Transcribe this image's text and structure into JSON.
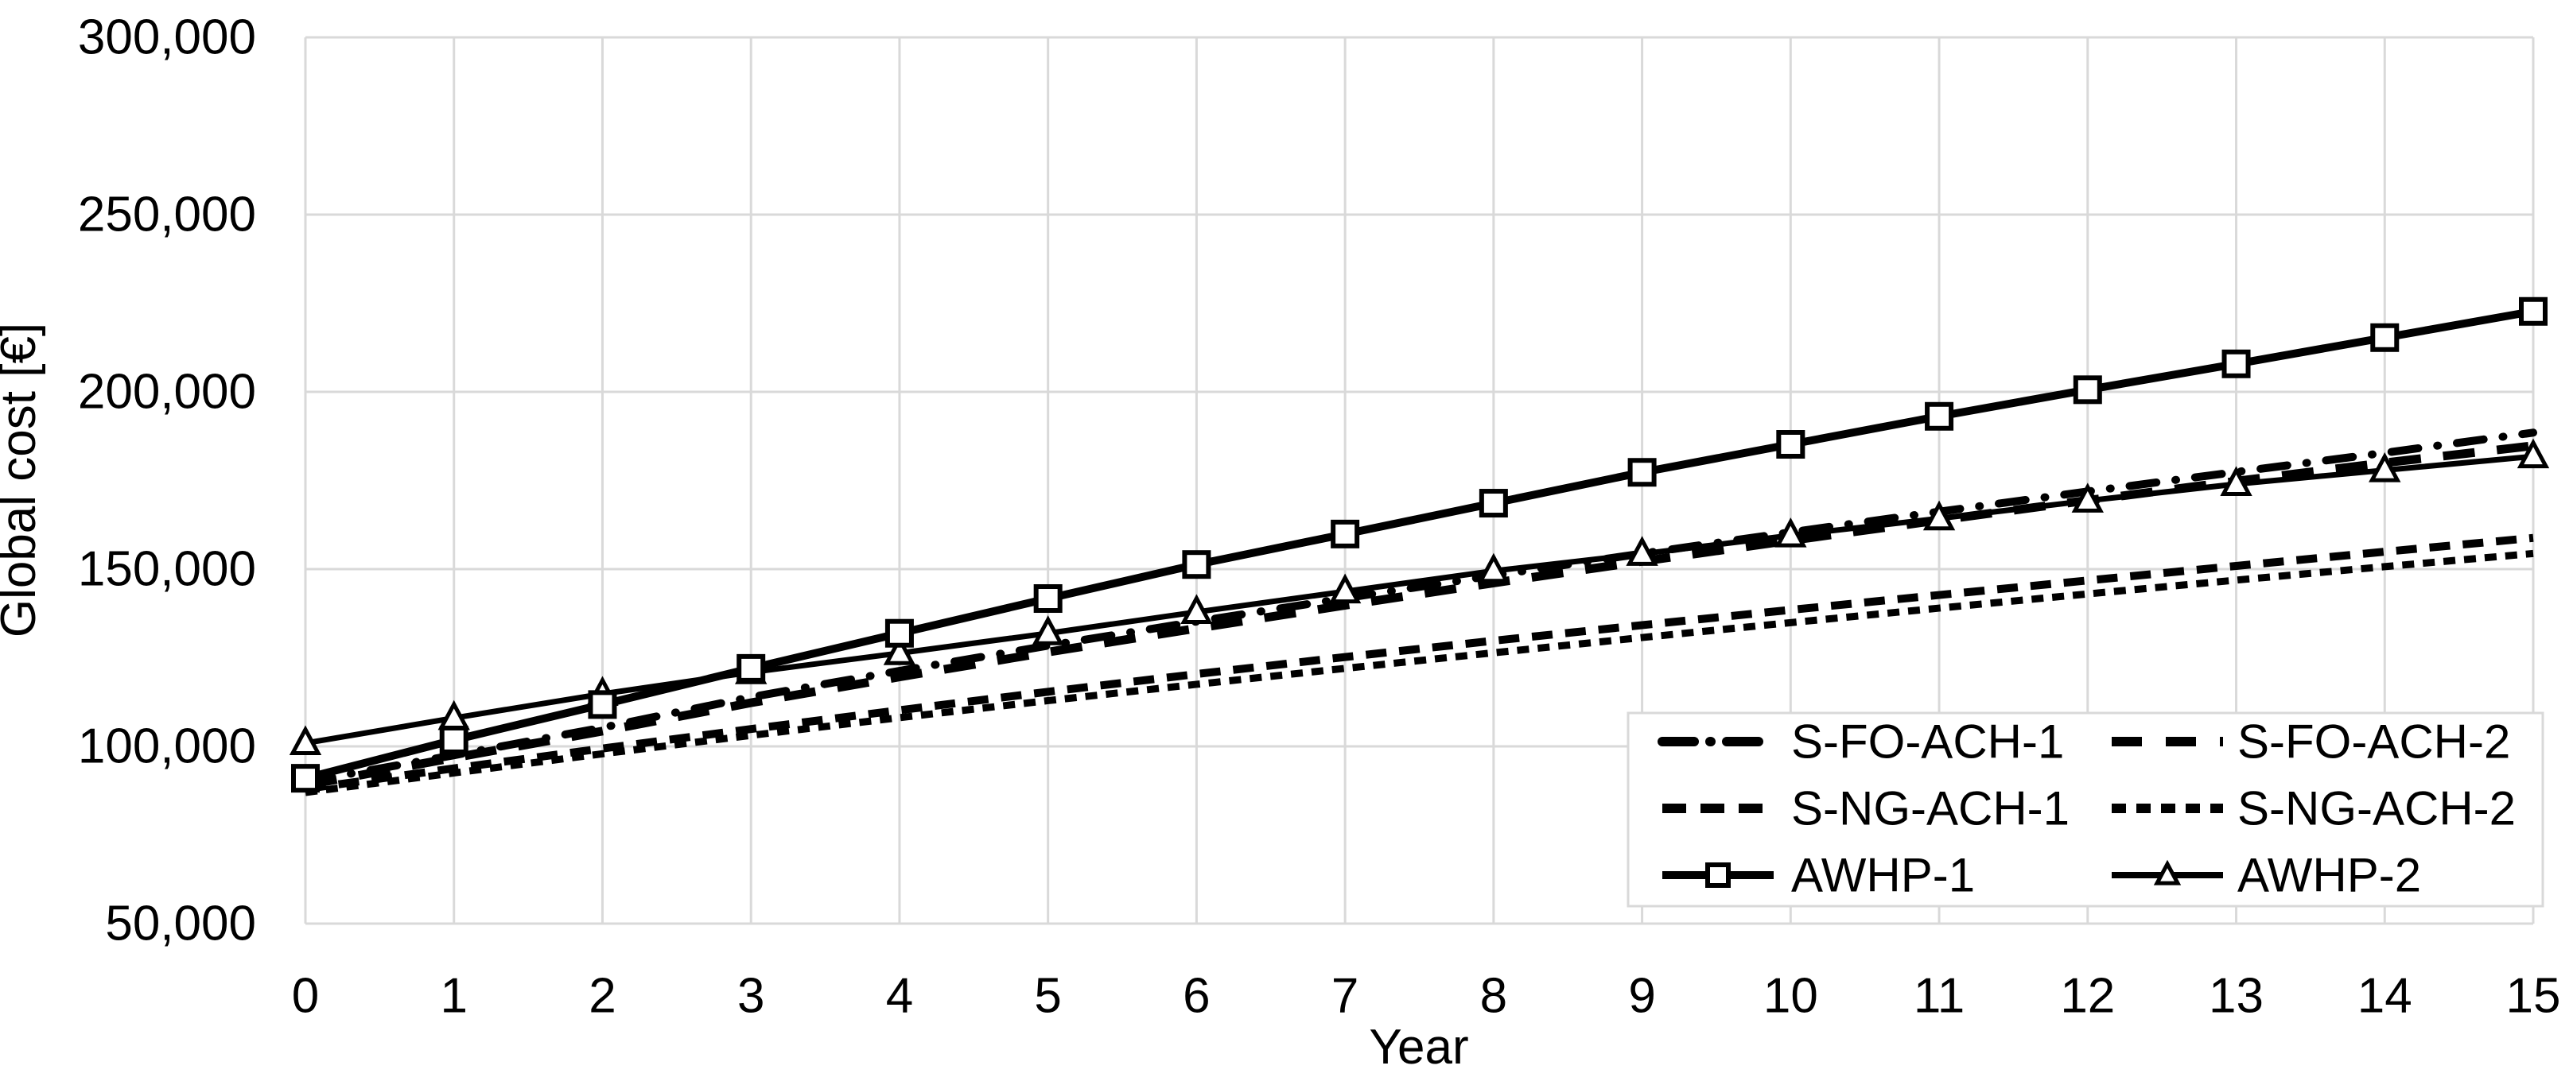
{
  "chart_data": {
    "type": "line",
    "title": "",
    "xlabel": "Year",
    "ylabel": "Global cost [€]",
    "xlim": [
      0,
      15
    ],
    "ylim": [
      50000,
      300000
    ],
    "grid": true,
    "legend_position": "inside-bottom-right",
    "x": [
      0,
      1,
      2,
      3,
      4,
      5,
      6,
      7,
      8,
      9,
      10,
      11,
      12,
      13,
      14,
      15
    ],
    "x_tick_labels": [
      "0",
      "1",
      "2",
      "3",
      "4",
      "5",
      "6",
      "7",
      "8",
      "9",
      "10",
      "11",
      "12",
      "13",
      "14",
      "15"
    ],
    "y_ticks": [
      {
        "value": 300000,
        "label": "300,000"
      },
      {
        "value": 250000,
        "label": "250,000"
      },
      {
        "value": 200000,
        "label": "200,000"
      },
      {
        "value": 150000,
        "label": "150,000"
      },
      {
        "value": 100000,
        "label": "100,000"
      },
      {
        "value": 50000,
        "label": "50,000"
      }
    ],
    "series": [
      {
        "name": "S-FO-ACH-1",
        "style": "dashdot",
        "marker": "none",
        "values": [
          90000,
          97500,
          105300,
          113900,
          121300,
          128400,
          135200,
          141800,
          148200,
          154400,
          160400,
          166200,
          171900,
          177400,
          182800,
          188500
        ]
      },
      {
        "name": "S-FO-ACH-2",
        "style": "longdash",
        "marker": "none",
        "values": [
          89000,
          96800,
          104300,
          112300,
          119600,
          126600,
          133300,
          139800,
          146100,
          152200,
          158100,
          163800,
          169400,
          174800,
          180000,
          184800
        ]
      },
      {
        "name": "S-NG-ACH-1",
        "style": "dash",
        "marker": "none",
        "values": [
          88000,
          93800,
          99400,
          104900,
          110200,
          115400,
          120400,
          125200,
          129800,
          134200,
          138500,
          142700,
          146800,
          150900,
          154900,
          158800
        ]
      },
      {
        "name": "S-NG-ACH-2",
        "style": "finedash",
        "marker": "none",
        "values": [
          87000,
          92500,
          97900,
          103100,
          108100,
          112900,
          117500,
          122000,
          126400,
          130700,
          134900,
          139000,
          143000,
          146900,
          150700,
          154400
        ]
      },
      {
        "name": "AWHP-1",
        "style": "solid",
        "marker": "square",
        "values": [
          91000,
          101800,
          111800,
          122000,
          131900,
          141700,
          151300,
          159900,
          168600,
          177300,
          185200,
          193100,
          200600,
          207900,
          215300,
          222700
        ]
      },
      {
        "name": "AWHP-2",
        "style": "solid",
        "marker": "triangle",
        "values": [
          100900,
          108000,
          114800,
          120900,
          126300,
          131900,
          137900,
          143700,
          149500,
          154300,
          159500,
          164300,
          169300,
          174000,
          177900,
          181800
        ]
      }
    ],
    "colors": {
      "line": "#000000",
      "grid": "#d9d9d9",
      "background": "#ffffff",
      "text": "#000000"
    }
  }
}
